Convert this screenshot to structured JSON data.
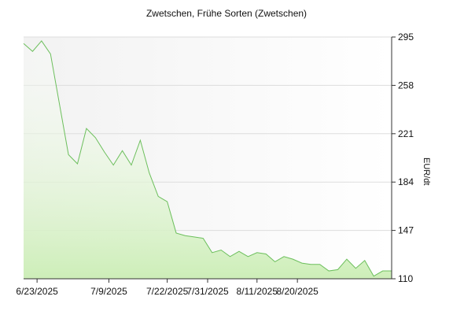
{
  "chart_data": {
    "type": "area",
    "title": "Zwetschen, Frühe Sorten (Zwetschen)",
    "xlabel": "",
    "ylabel": "EUR/dt",
    "ylim": [
      110,
      295
    ],
    "yticks": [
      "295",
      "258",
      "221",
      "184",
      "147",
      "110"
    ],
    "yticks_values": [
      295,
      258,
      221,
      184,
      147,
      110
    ],
    "xticks": [
      {
        "label": "6/23/2025",
        "date": "2025-06-23"
      },
      {
        "label": "7/9/2025",
        "date": "2025-07-09"
      },
      {
        "label": "7/22/2025",
        "date": "2025-07-22"
      },
      {
        "label": "7/31/2025",
        "date": "2025-07-31"
      },
      {
        "label": "8/11/2025",
        "date": "2025-08-11"
      },
      {
        "label": "8/20/2025",
        "date": "2025-08-20"
      }
    ],
    "grid": true,
    "colors": {
      "line": "#6cbf5c",
      "fill_top": "#ffffff",
      "fill_bottom": "#cdeeb8",
      "plot_bg_left": "#f2f2f2",
      "plot_bg_right": "#ffffff",
      "grid": "#dddddd"
    },
    "series": [
      {
        "x": [
          "2025-06-20",
          "2025-06-22",
          "2025-06-24",
          "2025-06-26",
          "2025-06-30",
          "2025-07-02",
          "2025-07-04",
          "2025-07-06",
          "2025-07-08",
          "2025-07-10",
          "2025-07-12",
          "2025-07-14",
          "2025-07-16",
          "2025-07-18",
          "2025-07-20",
          "2025-07-22",
          "2025-07-24",
          "2025-07-26",
          "2025-07-28",
          "2025-07-30",
          "2025-08-01",
          "2025-08-03",
          "2025-08-05",
          "2025-08-07",
          "2025-08-09",
          "2025-08-11",
          "2025-08-13",
          "2025-08-15",
          "2025-08-17",
          "2025-08-19",
          "2025-08-21",
          "2025-08-23",
          "2025-08-25",
          "2025-08-27",
          "2025-08-29",
          "2025-08-31",
          "2025-09-02",
          "2025-09-04",
          "2025-09-06",
          "2025-09-08",
          "2025-09-10"
        ],
        "values": [
          290,
          284,
          292,
          282,
          205,
          198,
          225,
          218,
          207,
          197,
          208,
          197,
          216,
          191,
          173,
          169,
          145,
          143,
          142,
          141,
          130,
          132,
          127,
          131,
          127,
          130,
          129,
          123,
          127,
          125,
          122,
          121,
          121,
          116,
          117,
          125,
          118,
          124,
          112,
          116,
          116
        ]
      }
    ]
  }
}
